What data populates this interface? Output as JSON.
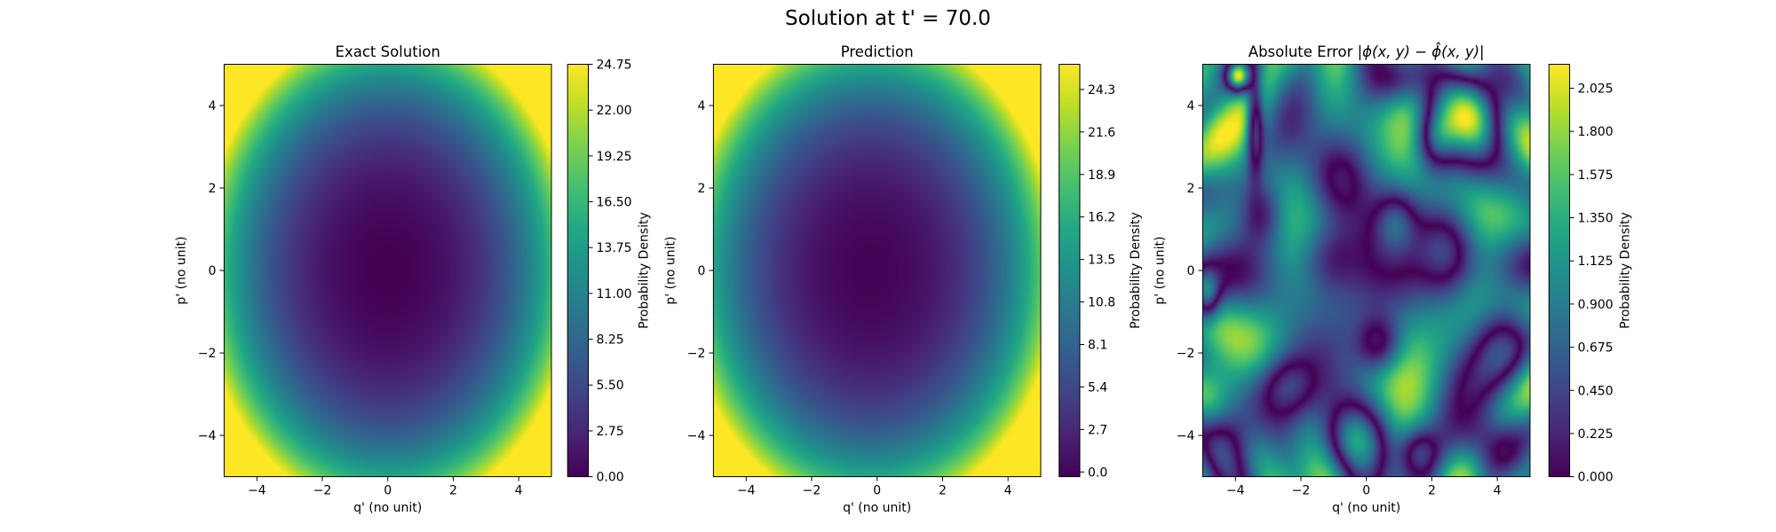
{
  "figure": {
    "suptitle": "Solution at t' = 70.0"
  },
  "chart_data": [
    {
      "type": "heatmap",
      "title": "Exact Solution",
      "xlabel": "q' (no unit)",
      "ylabel": "p' (no unit)",
      "xlim": [
        -5,
        5
      ],
      "ylim": [
        -5,
        5
      ],
      "xticks": [
        -4,
        -2,
        0,
        2,
        4
      ],
      "yticks": [
        -4,
        -2,
        0,
        2,
        4
      ],
      "colormap": "viridis",
      "field": "quadratic bowl, minimum 0 at (0, 0), maximum about 25 at corners",
      "colorbar": {
        "label": "Probability Density",
        "min": 0.0,
        "max": 24.75,
        "ticks": [
          0.0,
          2.75,
          5.5,
          8.25,
          11.0,
          13.75,
          16.5,
          19.25,
          22.0,
          24.75
        ],
        "tick_labels": [
          "0.00",
          "2.75",
          "5.50",
          "8.25",
          "11.00",
          "13.75",
          "16.50",
          "19.25",
          "22.00",
          "24.75"
        ]
      }
    },
    {
      "type": "heatmap",
      "title": "Prediction",
      "xlabel": "q' (no unit)",
      "ylabel": "p' (no unit)",
      "xlim": [
        -5,
        5
      ],
      "ylim": [
        -5,
        5
      ],
      "xticks": [
        -4,
        -2,
        0,
        2,
        4
      ],
      "yticks": [
        -4,
        -2,
        0,
        2,
        4
      ],
      "colormap": "viridis",
      "field": "quadratic bowl, minimum near 0 at (-0.2, 0), maximum about 25.9 at corners",
      "colorbar": {
        "label": "Probability Density",
        "min": -0.3,
        "max": 25.9,
        "ticks": [
          0.0,
          2.7,
          5.4,
          8.1,
          10.8,
          13.5,
          16.2,
          18.9,
          21.6,
          24.3
        ],
        "tick_labels": [
          "0.0",
          "2.7",
          "5.4",
          "8.1",
          "10.8",
          "13.5",
          "16.2",
          "18.9",
          "21.6",
          "24.3"
        ]
      }
    },
    {
      "type": "heatmap",
      "title_prefix": "Absolute Error ",
      "title_formula": "|ϕ(x, y) − ϕ̂(x, y)|",
      "xlabel": "q' (no unit)",
      "ylabel": "p' (no unit)",
      "xlim": [
        -5,
        5
      ],
      "ylim": [
        -5,
        5
      ],
      "xticks": [
        -4,
        -2,
        0,
        2,
        4
      ],
      "yticks": [
        -4,
        -2,
        0,
        2,
        4
      ],
      "colormap": "viridis",
      "field": "irregular blobs; peak about 2.1 near (-3.9, 4.7); elevated regions near (3.2, 3.9), (-0.4, -4.1), (2.5, 0.5)",
      "colorbar": {
        "label": "Probability Density",
        "min": 0.0,
        "max": 2.15,
        "ticks": [
          0.0,
          0.225,
          0.45,
          0.675,
          0.9,
          1.125,
          1.35,
          1.575,
          1.8,
          2.025
        ],
        "tick_labels": [
          "0.000",
          "0.225",
          "0.450",
          "0.675",
          "0.900",
          "1.125",
          "1.350",
          "1.575",
          "1.800",
          "2.025"
        ]
      }
    }
  ]
}
